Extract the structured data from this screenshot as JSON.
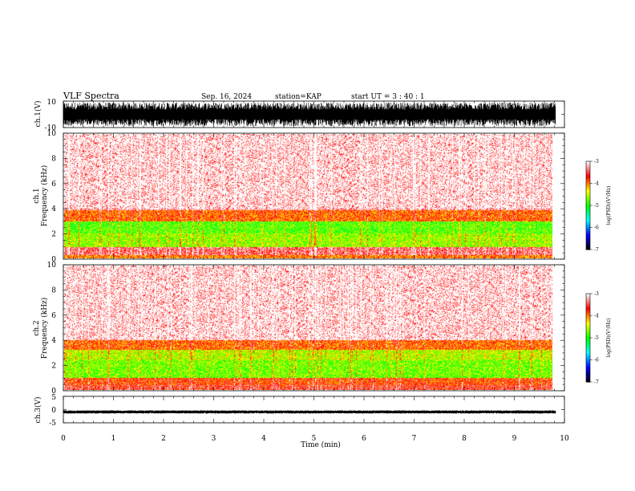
{
  "header": {
    "title": "VLF Spectra",
    "date": "Sep. 16, 2024",
    "station": "station=KAP",
    "start": "start UT = 3 : 40 : 1"
  },
  "chart_data": [
    {
      "type": "line",
      "panel": "ch1-waveform",
      "ylabel": "ch.1(V)",
      "ylim": [
        -10,
        10
      ],
      "ytick_labels": [
        "10",
        "-10"
      ],
      "xlim": [
        0,
        10
      ],
      "data_end_min": 9.82,
      "amplitude_range_V": [
        -9,
        9
      ]
    },
    {
      "type": "heatmap",
      "panel": "ch1-spectrogram",
      "title": "ch.1",
      "ylabel": "Frequency (kHz)",
      "ylim": [
        0,
        10
      ],
      "ytick_labels": [
        "0",
        "2",
        "4",
        "6",
        "8",
        "10"
      ],
      "xlim": [
        0,
        10
      ],
      "data_end_min": 9.82,
      "colorbar": {
        "label": "log(PSD)(V²/Hz)",
        "range": [
          -7,
          -3
        ],
        "tick_labels": [
          "-3",
          "-4",
          "-5",
          "-6",
          "-7"
        ],
        "colors": [
          "#000000",
          "#0000ff",
          "#00ffff",
          "#00ff00",
          "#ffff00",
          "#ff0000",
          "#ffffff"
        ]
      },
      "bands": [
        {
          "f": [
            0.0,
            0.25
          ],
          "level": -4.0
        },
        {
          "f": [
            0.25,
            0.9
          ],
          "level": -3.4
        },
        {
          "f": [
            0.9,
            2.0
          ],
          "level": -4.6
        },
        {
          "f": [
            2.0,
            3.0
          ],
          "level": -4.8
        },
        {
          "f": [
            3.0,
            3.9
          ],
          "level": -3.9
        },
        {
          "f": [
            3.9,
            10.0
          ],
          "level": -3.2
        }
      ]
    },
    {
      "type": "heatmap",
      "panel": "ch2-spectrogram",
      "title": "ch.2",
      "ylabel": "Frequency (kHz)",
      "ylim": [
        0,
        10
      ],
      "ytick_labels": [
        "0",
        "2",
        "4",
        "6",
        "8",
        "10"
      ],
      "xlim": [
        0,
        10
      ],
      "data_end_min": 9.82,
      "colorbar": {
        "label": "log(PSD)(V²/Hz)",
        "range": [
          -7,
          -3
        ],
        "tick_labels": [
          "-3",
          "-4",
          "-5",
          "-6",
          "-7"
        ],
        "colors": [
          "#000000",
          "#0000ff",
          "#00ffff",
          "#00ff00",
          "#ffff00",
          "#ff0000",
          "#ffffff"
        ]
      },
      "bands": [
        {
          "f": [
            0.0,
            0.4
          ],
          "level": -3.6
        },
        {
          "f": [
            0.4,
            1.0
          ],
          "level": -3.8
        },
        {
          "f": [
            1.0,
            2.4
          ],
          "level": -4.7
        },
        {
          "f": [
            2.4,
            3.2
          ],
          "level": -4.5
        },
        {
          "f": [
            3.2,
            4.0
          ],
          "level": -3.9
        },
        {
          "f": [
            4.0,
            10.0
          ],
          "level": -3.2
        }
      ]
    },
    {
      "type": "line",
      "panel": "ch3-waveform",
      "ylabel": "ch.3(V)",
      "ylim": [
        -5,
        5
      ],
      "ytick_labels": [
        "5",
        "0",
        "-5"
      ],
      "xlim": [
        0,
        10
      ],
      "data_end_min": 9.82,
      "amplitude_range_V": [
        -1.5,
        -0.3
      ],
      "xlabel": "Time (min)",
      "xtick_labels": [
        "0",
        "1",
        "2",
        "3",
        "4",
        "5",
        "6",
        "7",
        "8",
        "9",
        "10"
      ]
    }
  ]
}
